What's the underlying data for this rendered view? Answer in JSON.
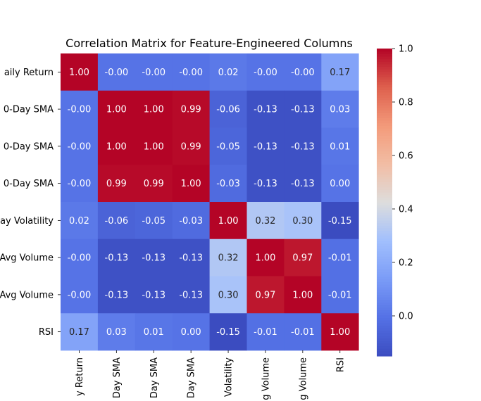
{
  "chart_data": {
    "type": "heatmap",
    "title": "Correlation Matrix for Feature-Engineered Columns",
    "row_labels": [
      "aily Return",
      "0-Day SMA",
      "0-Day SMA",
      "0-Day SMA",
      "ay Volatility",
      "Avg Volume",
      "Avg Volume",
      "RSI"
    ],
    "col_labels": [
      "y Return",
      "Day SMA",
      "Day SMA",
      "Day SMA",
      "Volatility",
      "g Volume",
      "g Volume",
      "RSI"
    ],
    "values": [
      [
        1.0,
        -0.0,
        -0.0,
        -0.0,
        0.02,
        -0.0,
        -0.0,
        0.17
      ],
      [
        -0.0,
        1.0,
        1.0,
        0.99,
        -0.06,
        -0.13,
        -0.13,
        0.03
      ],
      [
        -0.0,
        1.0,
        1.0,
        0.99,
        -0.05,
        -0.13,
        -0.13,
        0.01
      ],
      [
        -0.0,
        0.99,
        0.99,
        1.0,
        -0.03,
        -0.13,
        -0.13,
        0.0
      ],
      [
        0.02,
        -0.06,
        -0.05,
        -0.03,
        1.0,
        0.32,
        0.3,
        -0.15
      ],
      [
        -0.0,
        -0.13,
        -0.13,
        -0.13,
        0.32,
        1.0,
        0.97,
        -0.01
      ],
      [
        -0.0,
        -0.13,
        -0.13,
        -0.13,
        0.3,
        0.97,
        1.0,
        -0.01
      ],
      [
        0.17,
        0.03,
        0.01,
        0.0,
        -0.15,
        -0.01,
        -0.01,
        1.0
      ]
    ],
    "annotations": [
      [
        "1.00",
        "-0.00",
        "-0.00",
        "-0.00",
        "0.02",
        "-0.00",
        "-0.00",
        "0.17"
      ],
      [
        "-0.00",
        "1.00",
        "1.00",
        "0.99",
        "-0.06",
        "-0.13",
        "-0.13",
        "0.03"
      ],
      [
        "-0.00",
        "1.00",
        "1.00",
        "0.99",
        "-0.05",
        "-0.13",
        "-0.13",
        "0.01"
      ],
      [
        "-0.00",
        "0.99",
        "0.99",
        "1.00",
        "-0.03",
        "-0.13",
        "-0.13",
        "0.00"
      ],
      [
        "0.02",
        "-0.06",
        "-0.05",
        "-0.03",
        "1.00",
        "0.32",
        "0.30",
        "-0.15"
      ],
      [
        "-0.00",
        "-0.13",
        "-0.13",
        "-0.13",
        "0.32",
        "1.00",
        "0.97",
        "-0.01"
      ],
      [
        "-0.00",
        "-0.13",
        "-0.13",
        "-0.13",
        "0.30",
        "0.97",
        "1.00",
        "-0.01"
      ],
      [
        "0.17",
        "0.03",
        "0.01",
        "0.00",
        "-0.15",
        "-0.01",
        "-0.01",
        "1.00"
      ]
    ],
    "colormap": "coolwarm",
    "vmin": -0.15,
    "vmax": 1.0,
    "colorbar_ticks": [
      0.0,
      0.2,
      0.4,
      0.6,
      0.8,
      1.0
    ],
    "colorbar_tick_labels": [
      "0.0",
      "0.2",
      "0.4",
      "0.6",
      "0.8",
      "1.0"
    ]
  }
}
